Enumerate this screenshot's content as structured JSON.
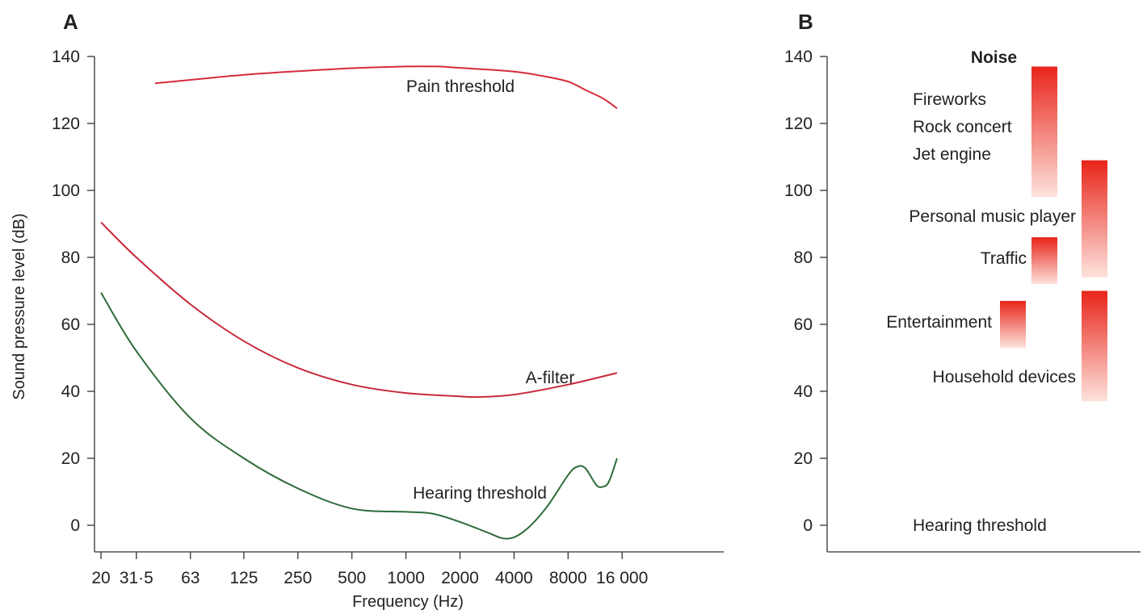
{
  "panel_a": {
    "letter": "A",
    "curve_labels": {
      "pain": "Pain threshold",
      "afilter": "A-filter",
      "hearing": "Hearing threshold"
    }
  },
  "panel_b": {
    "letter": "B"
  },
  "colors": {
    "pain": "#d62c3a",
    "afilter": "#c8283c",
    "hearing": "#2e6b3a",
    "bar_top": "#e8241a",
    "bar_bottom": "#fde3dc"
  },
  "chart_data": [
    {
      "type": "line",
      "panel": "A",
      "xlabel": "Frequency (Hz)",
      "ylabel": "Sound pressure level (dB)",
      "x_scale": "log2",
      "x_ticks": [
        20,
        31.5,
        63,
        125,
        250,
        500,
        1000,
        2000,
        4000,
        8000,
        16000
      ],
      "x_tick_labels": [
        "20",
        "31·5",
        "63",
        "125",
        "250",
        "500",
        "1000",
        "2000",
        "4000",
        "8000",
        "16 000"
      ],
      "y_ticks": [
        0,
        20,
        40,
        60,
        80,
        100,
        120,
        140
      ],
      "ylim": [
        -7,
        140
      ],
      "series": [
        {
          "name": "Pain threshold",
          "color_key": "pain",
          "points": [
            [
              40,
              132
            ],
            [
              63,
              133
            ],
            [
              125,
              134.5
            ],
            [
              250,
              135.6
            ],
            [
              500,
              136.5
            ],
            [
              1000,
              137
            ],
            [
              1500,
              137
            ],
            [
              2000,
              136.6
            ],
            [
              4000,
              135.5
            ],
            [
              6000,
              134
            ],
            [
              8000,
              132.5
            ],
            [
              10000,
              130
            ],
            [
              12500,
              127.5
            ],
            [
              15000,
              124.5
            ]
          ]
        },
        {
          "name": "A-filter",
          "color_key": "afilter",
          "points": [
            [
              20,
              90.5
            ],
            [
              31.5,
              80
            ],
            [
              63,
              66
            ],
            [
              125,
              55
            ],
            [
              250,
              47
            ],
            [
              500,
              42
            ],
            [
              1000,
              39.5
            ],
            [
              2000,
              38.5
            ],
            [
              2500,
              38.3
            ],
            [
              4000,
              39
            ],
            [
              8000,
              42
            ],
            [
              15000,
              45.5
            ]
          ]
        },
        {
          "name": "Hearing threshold",
          "color_key": "hearing",
          "points": [
            [
              20,
              69.5
            ],
            [
              31.5,
              52
            ],
            [
              63,
              32
            ],
            [
              125,
              20
            ],
            [
              250,
              11
            ],
            [
              500,
              5
            ],
            [
              1000,
              4
            ],
            [
              1400,
              3.5
            ],
            [
              2000,
              1
            ],
            [
              2800,
              -2
            ],
            [
              3600,
              -4
            ],
            [
              4500,
              -2
            ],
            [
              6000,
              5
            ],
            [
              8000,
              15
            ],
            [
              9000,
              17.5
            ],
            [
              10000,
              17
            ],
            [
              11500,
              12
            ],
            [
              12500,
              11.5
            ],
            [
              13500,
              13
            ],
            [
              15000,
              20
            ]
          ]
        }
      ]
    },
    {
      "type": "bar",
      "panel": "B",
      "y_ticks": [
        0,
        20,
        40,
        60,
        80,
        100,
        120,
        140
      ],
      "ylim": [
        -7,
        140
      ],
      "heading": "Noise",
      "categories": [
        "Fireworks",
        "Rock concert",
        "Jet engine",
        "Personal music player",
        "Traffic",
        "Entertainment",
        "Household devices",
        "Hearing threshold"
      ],
      "ranges": [
        {
          "labels": [
            "Fireworks",
            "Rock concert",
            "Jet engine"
          ],
          "low": 98,
          "high": 137
        },
        {
          "labels": [
            "Personal music player"
          ],
          "low": 74,
          "high": 109
        },
        {
          "labels": [
            "Traffic"
          ],
          "low": 72,
          "high": 86
        },
        {
          "labels": [
            "Entertainment"
          ],
          "low": 53,
          "high": 67
        },
        {
          "labels": [
            "Household devices"
          ],
          "low": 37,
          "high": 70
        }
      ],
      "reference_label": {
        "text": "Hearing threshold",
        "y": 0
      }
    }
  ]
}
